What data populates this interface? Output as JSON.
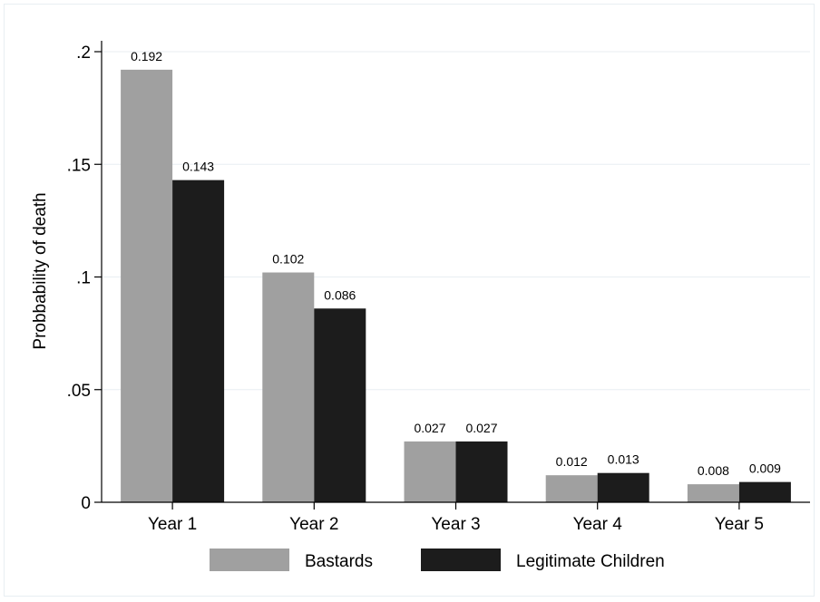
{
  "chart_data": {
    "type": "bar",
    "categories": [
      "Year 1",
      "Year 2",
      "Year 3",
      "Year 4",
      "Year 5"
    ],
    "series": [
      {
        "name": "Bastards",
        "values": [
          0.192,
          0.102,
          0.027,
          0.012,
          0.008
        ],
        "labels": [
          "0.192",
          "0.102",
          "0.027",
          "0.012",
          "0.008"
        ],
        "color": "#a0a0a0"
      },
      {
        "name": "Legitimate Children",
        "values": [
          0.143,
          0.086,
          0.027,
          0.013,
          0.009
        ],
        "labels": [
          "0.143",
          "0.086",
          "0.027",
          "0.013",
          "0.009"
        ],
        "color": "#1c1c1c"
      }
    ],
    "ylabel": "Probbability of death",
    "xlabel": "",
    "ylim": [
      0,
      0.2
    ],
    "yticks": [
      0,
      0.05,
      0.1,
      0.15,
      0.2
    ],
    "yticklabels": [
      "0",
      ".05",
      ".1",
      ".15",
      ".2"
    ],
    "grid": true,
    "legend_position": "bottom"
  }
}
